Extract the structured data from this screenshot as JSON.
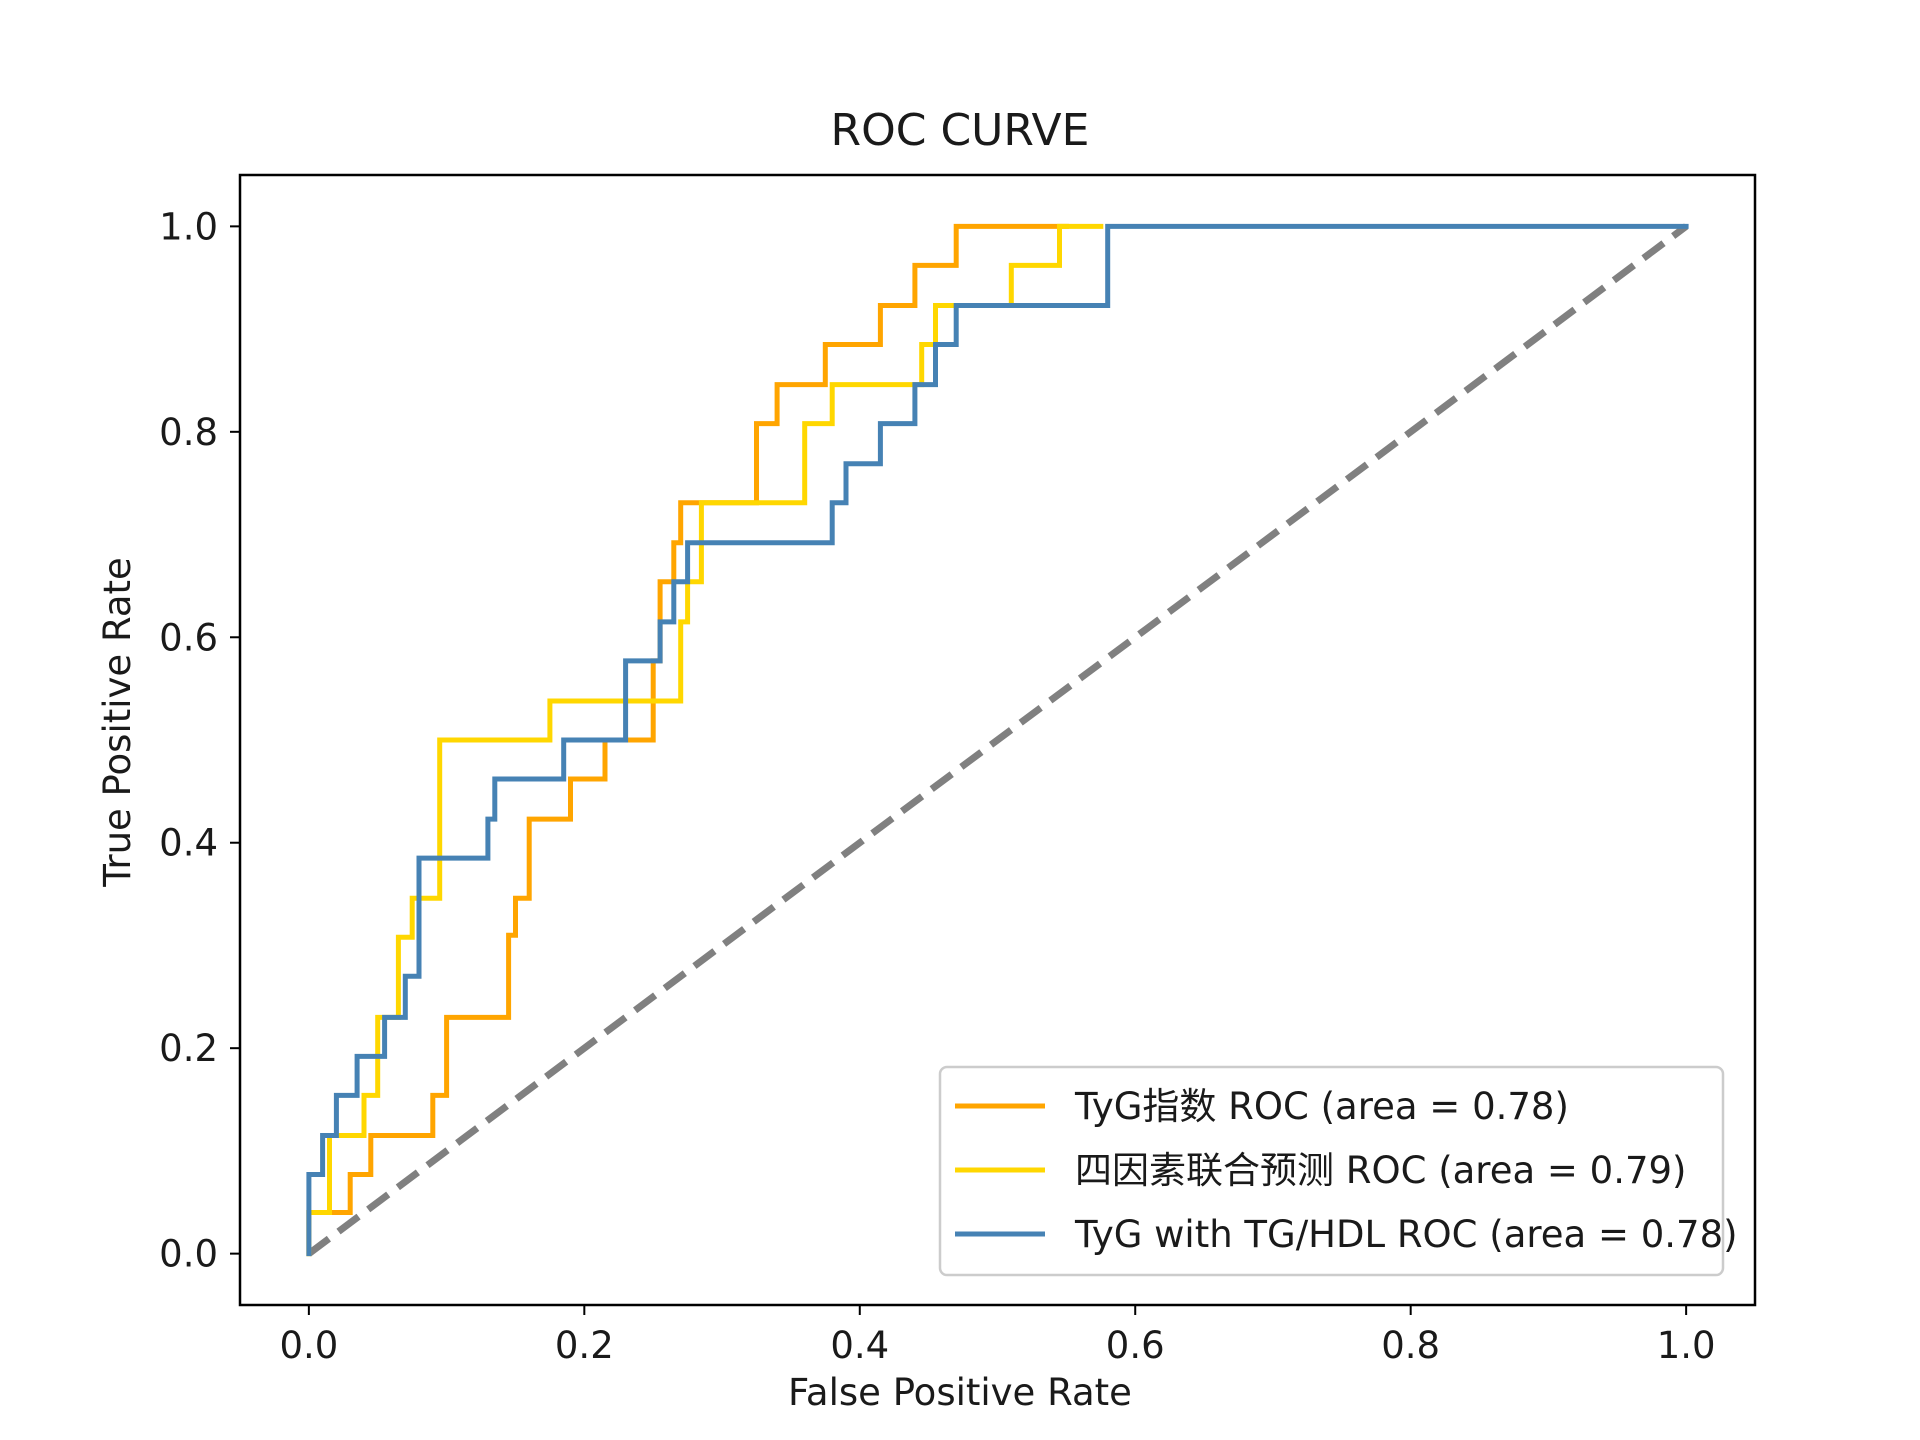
{
  "chart_data": {
    "type": "line",
    "title": "ROC CURVE",
    "xlabel": "False Positive Rate",
    "ylabel": "True Positive Rate",
    "xlim": [
      -0.05,
      1.05
    ],
    "ylim": [
      -0.05,
      1.05
    ],
    "xticks": [
      "0.0",
      "0.2",
      "0.4",
      "0.6",
      "0.8",
      "1.0"
    ],
    "yticks": [
      "0.0",
      "0.2",
      "0.4",
      "0.6",
      "0.8",
      "1.0"
    ],
    "grid": false,
    "legend_position": "bottom-right",
    "series": [
      {
        "name": "TyG指数 ROC (area = 0.78)",
        "color": "#FFA500",
        "x": [
          0.0,
          0.0,
          0.0,
          0.03,
          0.03,
          0.045,
          0.045,
          0.09,
          0.09,
          0.1,
          0.1,
          0.145,
          0.145,
          0.15,
          0.15,
          0.16,
          0.16,
          0.19,
          0.19,
          0.215,
          0.215,
          0.25,
          0.25,
          0.255,
          0.255,
          0.265,
          0.265,
          0.27,
          0.27,
          0.325,
          0.325,
          0.34,
          0.34,
          0.375,
          0.375,
          0.415,
          0.415,
          0.44,
          0.44,
          0.47,
          0.47,
          0.55
        ],
        "y": [
          0.0,
          0.04,
          0.04,
          0.04,
          0.077,
          0.077,
          0.115,
          0.115,
          0.154,
          0.154,
          0.23,
          0.23,
          0.31,
          0.31,
          0.346,
          0.346,
          0.423,
          0.423,
          0.462,
          0.462,
          0.5,
          0.5,
          0.577,
          0.577,
          0.654,
          0.654,
          0.692,
          0.692,
          0.731,
          0.731,
          0.808,
          0.808,
          0.846,
          0.846,
          0.885,
          0.885,
          0.923,
          0.923,
          0.962,
          0.962,
          1.0,
          1.0
        ]
      },
      {
        "name": "四因素联合预测 ROC (area = 0.79)",
        "color": "#FFD700",
        "x": [
          0.0,
          0.0,
          0.015,
          0.015,
          0.04,
          0.04,
          0.05,
          0.05,
          0.065,
          0.065,
          0.075,
          0.075,
          0.095,
          0.095,
          0.165,
          0.165,
          0.175,
          0.175,
          0.27,
          0.27,
          0.275,
          0.275,
          0.285,
          0.285,
          0.32,
          0.32,
          0.36,
          0.36,
          0.38,
          0.38,
          0.445,
          0.445,
          0.455,
          0.455,
          0.51,
          0.51,
          0.545,
          0.545,
          0.575
        ],
        "y": [
          0.0,
          0.04,
          0.04,
          0.115,
          0.115,
          0.154,
          0.154,
          0.23,
          0.23,
          0.308,
          0.308,
          0.346,
          0.346,
          0.5,
          0.5,
          0.5,
          0.5,
          0.538,
          0.538,
          0.615,
          0.615,
          0.654,
          0.654,
          0.731,
          0.731,
          0.731,
          0.731,
          0.808,
          0.808,
          0.846,
          0.846,
          0.885,
          0.885,
          0.923,
          0.923,
          0.962,
          0.962,
          1.0,
          1.0
        ]
      },
      {
        "name": "TyG with TG/HDL ROC (area = 0.78)",
        "color": "#4682B4",
        "x": [
          0.0,
          0.0,
          0.01,
          0.01,
          0.02,
          0.02,
          0.035,
          0.035,
          0.055,
          0.055,
          0.07,
          0.07,
          0.08,
          0.08,
          0.1,
          0.1,
          0.13,
          0.13,
          0.135,
          0.135,
          0.185,
          0.185,
          0.23,
          0.23,
          0.255,
          0.255,
          0.265,
          0.265,
          0.275,
          0.275,
          0.38,
          0.38,
          0.39,
          0.39,
          0.415,
          0.415,
          0.44,
          0.44,
          0.455,
          0.455,
          0.47,
          0.47,
          0.58,
          0.58,
          1.0
        ],
        "y": [
          0.0,
          0.077,
          0.077,
          0.115,
          0.115,
          0.154,
          0.154,
          0.192,
          0.192,
          0.23,
          0.23,
          0.27,
          0.27,
          0.385,
          0.385,
          0.385,
          0.385,
          0.423,
          0.423,
          0.462,
          0.462,
          0.5,
          0.5,
          0.577,
          0.577,
          0.615,
          0.615,
          0.654,
          0.654,
          0.692,
          0.692,
          0.731,
          0.731,
          0.769,
          0.769,
          0.808,
          0.808,
          0.846,
          0.846,
          0.885,
          0.885,
          0.923,
          0.923,
          1.0,
          1.0
        ]
      }
    ],
    "reference_line": {
      "color": "#808080",
      "style": "dashed",
      "x": [
        0.0,
        1.0
      ],
      "y": [
        0.0,
        1.0
      ]
    }
  }
}
